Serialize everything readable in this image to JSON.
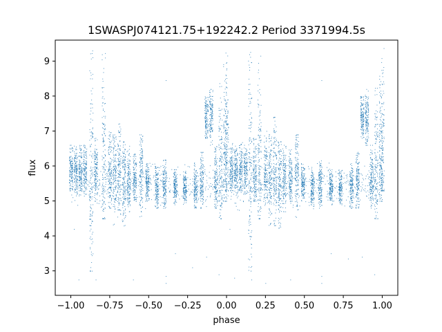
{
  "chart_data": {
    "type": "scatter",
    "title": "1SWASPJ074121.75+192242.2 Period 3371994.5s",
    "xlabel": "phase",
    "ylabel": "flux",
    "xlim": [
      -1.1,
      1.1
    ],
    "ylim": [
      2.3,
      9.6
    ],
    "xticks": [
      -1.0,
      -0.75,
      -0.5,
      -0.25,
      0.0,
      0.25,
      0.5,
      0.75,
      1.0
    ],
    "xtick_labels": [
      "−1.00",
      "−0.75",
      "−0.50",
      "−0.25",
      "0.00",
      "0.25",
      "0.50",
      "0.75",
      "1.00"
    ],
    "yticks": [
      3,
      4,
      5,
      6,
      7,
      8,
      9
    ],
    "ytick_labels": [
      "3",
      "4",
      "5",
      "6",
      "7",
      "8",
      "9"
    ],
    "grid": false,
    "marker_color": "#1f77b4",
    "series": [
      {
        "clusters": [
          {
            "x": -1.0,
            "y_min": 5.3,
            "y_max": 6.6,
            "y_center": 5.9
          },
          {
            "x": -0.97,
            "y_min": 5.2,
            "y_max": 6.6,
            "y_center": 5.9
          },
          {
            "x": -0.94,
            "y_min": 5.3,
            "y_max": 6.7,
            "y_center": 5.9
          },
          {
            "x": -0.91,
            "y_min": 5.2,
            "y_max": 6.6,
            "y_center": 5.9
          },
          {
            "x": -0.87,
            "y_min": 3.0,
            "y_max": 9.3,
            "y_center": 6.0
          },
          {
            "x": -0.84,
            "y_min": 5.0,
            "y_max": 6.8,
            "y_center": 5.8
          },
          {
            "x": -0.79,
            "y_min": 4.5,
            "y_max": 9.3,
            "y_center": 6.0
          },
          {
            "x": -0.75,
            "y_min": 4.8,
            "y_max": 7.0,
            "y_center": 5.8
          },
          {
            "x": -0.72,
            "y_min": 4.3,
            "y_max": 6.9,
            "y_center": 5.8
          },
          {
            "x": -0.69,
            "y_min": 4.3,
            "y_max": 7.4,
            "y_center": 5.9
          },
          {
            "x": -0.66,
            "y_min": 4.2,
            "y_max": 6.7,
            "y_center": 5.7
          },
          {
            "x": -0.63,
            "y_min": 4.7,
            "y_max": 6.6,
            "y_center": 5.6
          },
          {
            "x": -0.59,
            "y_min": 5.0,
            "y_max": 6.5,
            "y_center": 5.6
          },
          {
            "x": -0.55,
            "y_min": 4.5,
            "y_max": 6.9,
            "y_center": 5.9
          },
          {
            "x": -0.51,
            "y_min": 5.0,
            "y_max": 6.1,
            "y_center": 5.5
          },
          {
            "x": -0.45,
            "y_min": 4.8,
            "y_max": 6.0,
            "y_center": 5.4
          },
          {
            "x": -0.4,
            "y_min": 4.8,
            "y_max": 6.2,
            "y_center": 5.5
          },
          {
            "x": -0.33,
            "y_min": 4.9,
            "y_max": 5.9,
            "y_center": 5.4
          },
          {
            "x": -0.27,
            "y_min": 4.9,
            "y_max": 5.9,
            "y_center": 5.4
          },
          {
            "x": -0.2,
            "y_min": 4.8,
            "y_max": 6.1,
            "y_center": 5.4
          },
          {
            "x": -0.16,
            "y_min": 4.8,
            "y_max": 6.4,
            "y_center": 5.6
          },
          {
            "x": -0.13,
            "y_min": 6.8,
            "y_max": 8.0,
            "y_center": 7.4
          },
          {
            "x": -0.1,
            "y_min": 6.6,
            "y_max": 8.2,
            "y_center": 7.4
          },
          {
            "x": -0.07,
            "y_min": 4.8,
            "y_max": 6.6,
            "y_center": 5.6
          },
          {
            "x": -0.04,
            "y_min": 4.5,
            "y_max": 8.4,
            "y_center": 6.0
          },
          {
            "x": -0.01,
            "y_min": 5.0,
            "y_max": 9.0,
            "y_center": 6.2
          },
          {
            "x": 0.0,
            "y_min": 5.3,
            "y_max": 9.5,
            "y_center": 6.6
          },
          {
            "x": 0.03,
            "y_min": 5.3,
            "y_max": 6.7,
            "y_center": 5.9
          },
          {
            "x": 0.06,
            "y_min": 5.2,
            "y_max": 6.6,
            "y_center": 5.9
          },
          {
            "x": 0.09,
            "y_min": 5.3,
            "y_max": 6.7,
            "y_center": 5.9
          },
          {
            "x": 0.12,
            "y_min": 5.2,
            "y_max": 6.6,
            "y_center": 5.9
          },
          {
            "x": 0.15,
            "y_min": 3.0,
            "y_max": 9.3,
            "y_center": 6.0
          },
          {
            "x": 0.18,
            "y_min": 5.0,
            "y_max": 6.8,
            "y_center": 5.8
          },
          {
            "x": 0.21,
            "y_min": 4.5,
            "y_max": 9.3,
            "y_center": 6.0
          },
          {
            "x": 0.25,
            "y_min": 4.8,
            "y_max": 7.0,
            "y_center": 5.8
          },
          {
            "x": 0.28,
            "y_min": 4.3,
            "y_max": 6.9,
            "y_center": 5.8
          },
          {
            "x": 0.31,
            "y_min": 4.3,
            "y_max": 7.4,
            "y_center": 5.9
          },
          {
            "x": 0.34,
            "y_min": 4.2,
            "y_max": 6.7,
            "y_center": 5.7
          },
          {
            "x": 0.37,
            "y_min": 4.7,
            "y_max": 6.6,
            "y_center": 5.6
          },
          {
            "x": 0.41,
            "y_min": 5.0,
            "y_max": 6.5,
            "y_center": 5.6
          },
          {
            "x": 0.45,
            "y_min": 4.5,
            "y_max": 6.9,
            "y_center": 5.9
          },
          {
            "x": 0.49,
            "y_min": 5.0,
            "y_max": 6.1,
            "y_center": 5.5
          },
          {
            "x": 0.55,
            "y_min": 4.8,
            "y_max": 6.0,
            "y_center": 5.4
          },
          {
            "x": 0.6,
            "y_min": 4.8,
            "y_max": 6.2,
            "y_center": 5.5
          },
          {
            "x": 0.67,
            "y_min": 4.9,
            "y_max": 5.9,
            "y_center": 5.4
          },
          {
            "x": 0.73,
            "y_min": 4.9,
            "y_max": 5.9,
            "y_center": 5.4
          },
          {
            "x": 0.8,
            "y_min": 4.8,
            "y_max": 6.1,
            "y_center": 5.4
          },
          {
            "x": 0.84,
            "y_min": 4.8,
            "y_max": 6.4,
            "y_center": 5.6
          },
          {
            "x": 0.87,
            "y_min": 6.8,
            "y_max": 8.0,
            "y_center": 7.4
          },
          {
            "x": 0.9,
            "y_min": 6.6,
            "y_max": 8.2,
            "y_center": 7.4
          },
          {
            "x": 0.93,
            "y_min": 4.8,
            "y_max": 6.6,
            "y_center": 5.6
          },
          {
            "x": 0.96,
            "y_min": 4.5,
            "y_max": 8.4,
            "y_center": 6.0
          },
          {
            "x": 0.99,
            "y_min": 5.0,
            "y_max": 9.0,
            "y_center": 6.2
          },
          {
            "x": 1.0,
            "y_min": 5.3,
            "y_max": 9.5,
            "y_center": 6.6
          }
        ],
        "outliers": [
          [
            -0.95,
            2.75
          ],
          [
            -0.84,
            2.75
          ],
          [
            -0.6,
            2.75
          ],
          [
            -0.39,
            2.65
          ],
          [
            -0.39,
            2.85
          ],
          [
            -0.22,
            3.1
          ],
          [
            -0.13,
            3.4
          ],
          [
            -0.05,
            2.9
          ],
          [
            0.05,
            2.8
          ],
          [
            0.16,
            2.75
          ],
          [
            0.25,
            2.65
          ],
          [
            0.41,
            2.75
          ],
          [
            0.61,
            2.65
          ],
          [
            0.61,
            2.85
          ],
          [
            0.78,
            3.35
          ],
          [
            0.87,
            3.4
          ],
          [
            0.95,
            2.9
          ],
          [
            -0.39,
            8.45
          ],
          [
            0.61,
            8.45
          ],
          [
            -0.98,
            4.2
          ],
          [
            0.02,
            4.2
          ],
          [
            -0.33,
            3.5
          ],
          [
            0.67,
            3.5
          ]
        ]
      }
    ]
  }
}
